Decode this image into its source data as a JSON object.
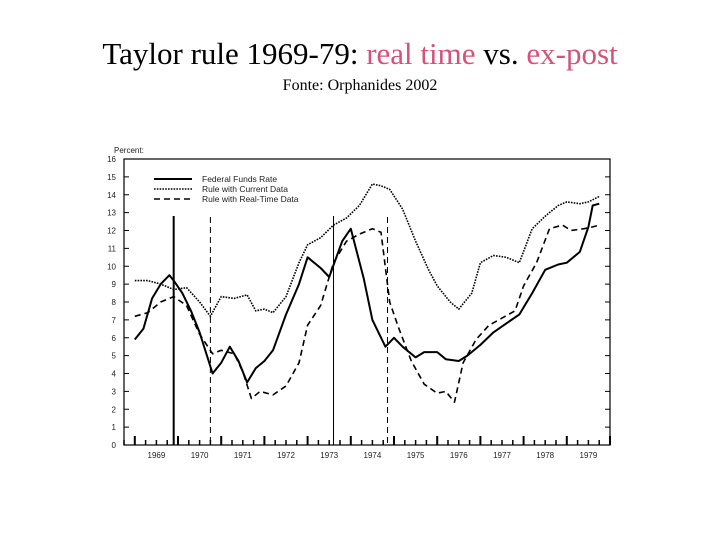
{
  "slide": {
    "title_part1": "Taylor rule 1969-79: ",
    "title_highlight1": "real time",
    "title_part2": " vs. ",
    "title_highlight2": "ex-post",
    "subtitle": "Fonte: Orphanides 2002",
    "highlight_color": "#d6517a"
  },
  "chart_data": {
    "type": "line",
    "ylabel": "Percent",
    "ylim": [
      0,
      16
    ],
    "yticks": [
      0,
      1,
      2,
      3,
      4,
      5,
      6,
      7,
      8,
      9,
      10,
      11,
      12,
      13,
      14,
      15,
      16
    ],
    "xlim": [
      1968.75,
      1980.0
    ],
    "xticks": [
      {
        "label": "1969",
        "value": 1969.5
      },
      {
        "label": "1970",
        "value": 1970.5
      },
      {
        "label": "1971",
        "value": 1971.5
      },
      {
        "label": "1972",
        "value": 1972.5
      },
      {
        "label": "1973",
        "value": 1973.5
      },
      {
        "label": "1974",
        "value": 1974.5
      },
      {
        "label": "1975",
        "value": 1975.5
      },
      {
        "label": "1976",
        "value": 1976.5
      },
      {
        "label": "1977",
        "value": 1977.5
      },
      {
        "label": "1978",
        "value": 1978.5
      },
      {
        "label": "1979",
        "value": 1979.5
      }
    ],
    "grid": false,
    "legend_position": "top-left",
    "vertical_markers": [
      {
        "x": 1969.9,
        "style": "solid",
        "width": 2
      },
      {
        "x": 1970.75,
        "style": "dashed",
        "width": 1
      },
      {
        "x": 1973.6,
        "style": "solid",
        "width": 1
      },
      {
        "x": 1974.85,
        "style": "dashed",
        "width": 1
      }
    ],
    "series": [
      {
        "name": "Federal Funds Rate",
        "style": "solid",
        "x": [
          1969.0,
          1969.2,
          1969.4,
          1969.6,
          1969.8,
          1969.9,
          1970.1,
          1970.3,
          1970.5,
          1970.8,
          1971.0,
          1971.2,
          1971.4,
          1971.6,
          1971.8,
          1972.0,
          1972.2,
          1972.5,
          1972.8,
          1973.0,
          1973.3,
          1973.5,
          1973.8,
          1974.0,
          1974.3,
          1974.5,
          1974.8,
          1975.0,
          1975.2,
          1975.5,
          1975.7,
          1976.0,
          1976.2,
          1976.5,
          1976.7,
          1977.0,
          1977.3,
          1977.6,
          1977.9,
          1978.2,
          1978.5,
          1978.8,
          1979.0,
          1979.3,
          1979.5,
          1979.6,
          1979.75
        ],
        "values": [
          5.9,
          6.5,
          8.2,
          9.0,
          9.5,
          9.2,
          8.5,
          7.5,
          6.3,
          4.0,
          4.6,
          5.5,
          4.7,
          3.5,
          4.3,
          4.7,
          5.3,
          7.3,
          9.0,
          10.5,
          9.9,
          9.4,
          11.4,
          12.1,
          9.3,
          7.0,
          5.5,
          6.0,
          5.5,
          4.9,
          5.2,
          5.2,
          4.8,
          4.7,
          5.0,
          5.6,
          6.3,
          6.8,
          7.3,
          8.5,
          9.8,
          10.1,
          10.2,
          10.8,
          12.2,
          13.4,
          13.5
        ]
      },
      {
        "name": "Rule with Current Data",
        "style": "dotted",
        "x": [
          1969.0,
          1969.3,
          1969.6,
          1969.9,
          1970.2,
          1970.5,
          1970.75,
          1971.0,
          1971.3,
          1971.6,
          1971.8,
          1972.0,
          1972.2,
          1972.5,
          1972.8,
          1973.0,
          1973.3,
          1973.6,
          1973.9,
          1974.2,
          1974.5,
          1974.7,
          1974.9,
          1975.2,
          1975.5,
          1975.8,
          1976.0,
          1976.3,
          1976.5,
          1976.8,
          1977.0,
          1977.3,
          1977.6,
          1977.9,
          1978.2,
          1978.5,
          1978.8,
          1979.0,
          1979.3,
          1979.5,
          1979.75
        ],
        "values": [
          9.2,
          9.2,
          9.0,
          8.7,
          8.8,
          8.0,
          7.2,
          8.3,
          8.2,
          8.4,
          7.5,
          7.6,
          7.4,
          8.3,
          10.2,
          11.2,
          11.6,
          12.3,
          12.7,
          13.4,
          14.6,
          14.5,
          14.3,
          13.2,
          11.4,
          9.8,
          8.9,
          8.0,
          7.6,
          8.5,
          10.2,
          10.6,
          10.5,
          10.2,
          12.1,
          12.8,
          13.4,
          13.6,
          13.5,
          13.6,
          13.9
        ]
      },
      {
        "name": "Rule with Real-Time Data",
        "style": "dashed",
        "x": [
          1969.0,
          1969.3,
          1969.6,
          1969.9,
          1970.2,
          1970.5,
          1970.8,
          1971.0,
          1971.3,
          1971.5,
          1971.7,
          1971.9,
          1972.2,
          1972.5,
          1972.8,
          1973.0,
          1973.3,
          1973.6,
          1973.9,
          1974.2,
          1974.5,
          1974.7,
          1974.9,
          1975.1,
          1975.4,
          1975.7,
          1976.0,
          1976.2,
          1976.4,
          1976.6,
          1976.9,
          1977.2,
          1977.5,
          1977.8,
          1978.0,
          1978.3,
          1978.6,
          1978.9,
          1979.1,
          1979.4,
          1979.6,
          1979.75
        ],
        "values": [
          7.2,
          7.4,
          8.0,
          8.3,
          7.8,
          6.2,
          5.1,
          5.3,
          5.1,
          4.1,
          2.6,
          3.0,
          2.8,
          3.3,
          4.6,
          6.7,
          7.8,
          10.2,
          11.4,
          11.8,
          12.1,
          11.9,
          8.0,
          6.6,
          4.7,
          3.4,
          2.9,
          3.0,
          2.4,
          4.6,
          5.9,
          6.7,
          7.1,
          7.5,
          8.9,
          10.2,
          12.1,
          12.3,
          12.0,
          12.1,
          12.2,
          12.3
        ]
      }
    ]
  }
}
